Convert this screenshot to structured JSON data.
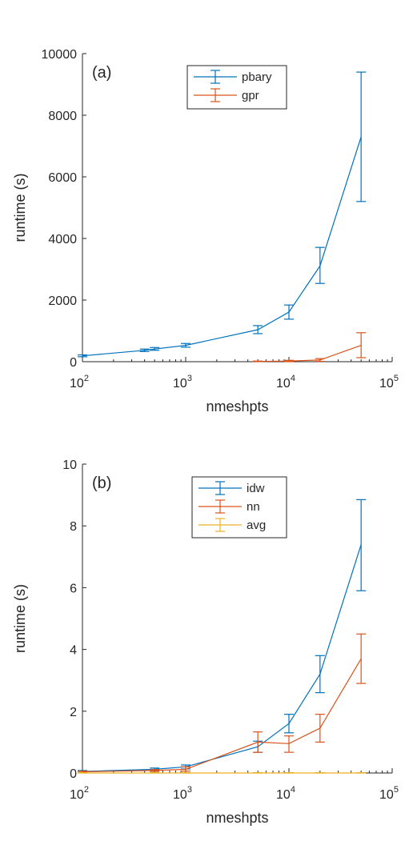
{
  "chart_data": [
    {
      "type": "line",
      "panel_label": "(a)",
      "xlabel": "nmeshpts",
      "ylabel": "runtime (s)",
      "xscale": "log",
      "xlim": [
        100,
        100000
      ],
      "ylim": [
        0,
        10000
      ],
      "yticks": [
        0,
        2000,
        4000,
        6000,
        8000,
        10000
      ],
      "xticks": [
        {
          "value": 100,
          "base": "10",
          "exp": "2"
        },
        {
          "value": 1000,
          "base": "10",
          "exp": "3"
        },
        {
          "value": 10000,
          "base": "10",
          "exp": "4"
        },
        {
          "value": 100000,
          "base": "10",
          "exp": "5"
        }
      ],
      "grid": false,
      "legend_position": "top-center",
      "series": [
        {
          "name": "pbary",
          "color": "#0072BD",
          "points": [
            {
              "x": 100,
              "y": 190,
              "lo": 160,
              "hi": 220
            },
            {
              "x": 400,
              "y": 370,
              "lo": 330,
              "hi": 410
            },
            {
              "x": 500,
              "y": 410,
              "lo": 370,
              "hi": 460
            },
            {
              "x": 1000,
              "y": 530,
              "lo": 470,
              "hi": 590
            },
            {
              "x": 5000,
              "y": 1040,
              "lo": 910,
              "hi": 1170
            },
            {
              "x": 10000,
              "y": 1610,
              "lo": 1380,
              "hi": 1840
            },
            {
              "x": 20000,
              "y": 3110,
              "lo": 2540,
              "hi": 3710
            },
            {
              "x": 50000,
              "y": 7300,
              "lo": 5200,
              "hi": 9400
            }
          ]
        },
        {
          "name": "gpr",
          "color": "#D95319",
          "points": [
            {
              "x": 5000,
              "y": 8,
              "lo": 0,
              "hi": 20
            },
            {
              "x": 10000,
              "y": 20,
              "lo": 0,
              "hi": 45
            },
            {
              "x": 20000,
              "y": 55,
              "lo": 10,
              "hi": 100
            },
            {
              "x": 50000,
              "y": 530,
              "lo": 130,
              "hi": 940
            }
          ]
        }
      ]
    },
    {
      "type": "line",
      "panel_label": "(b)",
      "xlabel": "nmeshpts",
      "ylabel": "runtime (s)",
      "xscale": "log",
      "xlim": [
        100,
        100000
      ],
      "ylim": [
        0,
        10
      ],
      "yticks": [
        0,
        2,
        4,
        6,
        8,
        10
      ],
      "xticks": [
        {
          "value": 100,
          "base": "10",
          "exp": "2"
        },
        {
          "value": 1000,
          "base": "10",
          "exp": "3"
        },
        {
          "value": 10000,
          "base": "10",
          "exp": "4"
        },
        {
          "value": 100000,
          "base": "10",
          "exp": "5"
        }
      ],
      "grid": false,
      "legend_position": "top-center",
      "series": [
        {
          "name": "idw",
          "color": "#0072BD",
          "points": [
            {
              "x": 100,
              "y": 0.05,
              "lo": 0.02,
              "hi": 0.08
            },
            {
              "x": 500,
              "y": 0.12,
              "lo": 0.08,
              "hi": 0.16
            },
            {
              "x": 1000,
              "y": 0.2,
              "lo": 0.13,
              "hi": 0.26
            },
            {
              "x": 5000,
              "y": 0.85,
              "lo": 0.67,
              "hi": 1.03
            },
            {
              "x": 10000,
              "y": 1.6,
              "lo": 1.3,
              "hi": 1.9
            },
            {
              "x": 20000,
              "y": 3.2,
              "lo": 2.6,
              "hi": 3.8
            },
            {
              "x": 50000,
              "y": 7.4,
              "lo": 5.9,
              "hi": 8.85
            }
          ]
        },
        {
          "name": "nn",
          "color": "#D95319",
          "points": [
            {
              "x": 100,
              "y": 0.04,
              "lo": 0.02,
              "hi": 0.06
            },
            {
              "x": 500,
              "y": 0.08,
              "lo": 0.05,
              "hi": 0.11
            },
            {
              "x": 1000,
              "y": 0.12,
              "lo": 0.06,
              "hi": 0.2
            },
            {
              "x": 5000,
              "y": 1.0,
              "lo": 0.67,
              "hi": 1.33
            },
            {
              "x": 10000,
              "y": 0.95,
              "lo": 0.67,
              "hi": 1.2
            },
            {
              "x": 20000,
              "y": 1.45,
              "lo": 1.0,
              "hi": 1.9
            },
            {
              "x": 50000,
              "y": 3.7,
              "lo": 2.9,
              "hi": 4.5
            }
          ]
        },
        {
          "name": "avg",
          "color": "#EDB120",
          "points": [
            {
              "x": 100,
              "y": 0.0,
              "lo": 0.0,
              "hi": 0.01
            },
            {
              "x": 500,
              "y": 0.0,
              "lo": 0.0,
              "hi": 0.01
            },
            {
              "x": 1000,
              "y": 0.0,
              "lo": 0.0,
              "hi": 0.01
            },
            {
              "x": 5000,
              "y": 0.0,
              "lo": 0.0,
              "hi": 0.01
            },
            {
              "x": 10000,
              "y": 0.0,
              "lo": 0.0,
              "hi": 0.01
            },
            {
              "x": 20000,
              "y": 0.0,
              "lo": 0.0,
              "hi": 0.01
            },
            {
              "x": 50000,
              "y": 0.0,
              "lo": 0.0,
              "hi": 0.01
            }
          ]
        }
      ]
    }
  ]
}
